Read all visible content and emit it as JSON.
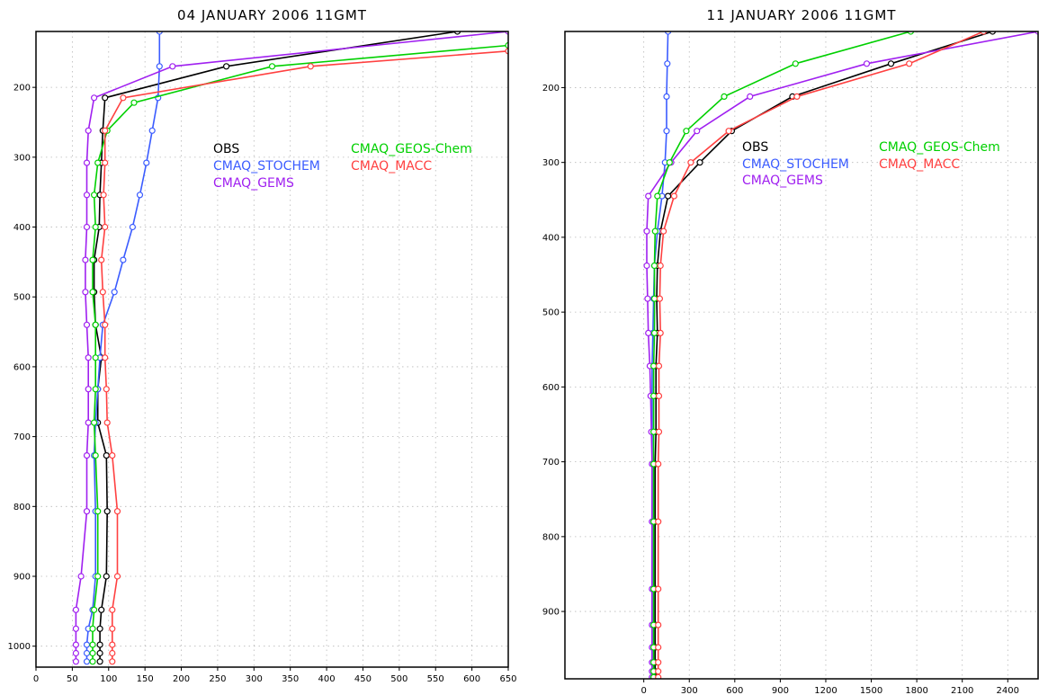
{
  "chart_data": [
    {
      "type": "line",
      "title": "04 JANUARY 2006 11GMT",
      "xlim": [
        0,
        650
      ],
      "ylim": [
        1030,
        120
      ],
      "y_inverted": true,
      "grid": true,
      "x_ticks": [
        0,
        50,
        100,
        150,
        200,
        250,
        300,
        350,
        400,
        450,
        500,
        550,
        600,
        650
      ],
      "y_ticks": [
        200,
        300,
        400,
        500,
        600,
        700,
        800,
        900,
        1000
      ],
      "legend": [
        {
          "name": "OBS",
          "color": "#000000"
        },
        {
          "name": "CMAQ_STOCHEM",
          "color": "#3b5cff"
        },
        {
          "name": "CMAQ_GEMS",
          "color": "#a020f0"
        },
        {
          "name": "CMAQ_GEOS-Chem",
          "color": "#00d000"
        },
        {
          "name": "CMAQ_MACC",
          "color": "#ff4040"
        }
      ],
      "series": [
        {
          "name": "OBS",
          "color": "#000000",
          "points": [
            [
              580,
              120
            ],
            [
              262,
              170
            ],
            [
              95,
              215
            ],
            [
              92,
              262
            ],
            [
              90,
              308
            ],
            [
              88,
              354
            ],
            [
              87,
              400
            ],
            [
              80,
              447
            ],
            [
              80,
              493
            ],
            [
              82,
              540
            ],
            [
              90,
              587
            ],
            [
              85,
              632
            ],
            [
              85,
              680
            ],
            [
              97,
              727
            ],
            [
              98,
              807
            ],
            [
              97,
              900
            ],
            [
              90,
              948
            ],
            [
              88,
              975
            ],
            [
              88,
              998
            ],
            [
              88,
              1010
            ],
            [
              88,
              1022
            ]
          ]
        },
        {
          "name": "CMAQ_STOCHEM",
          "color": "#3b5cff",
          "points": [
            [
              170,
              120
            ],
            [
              170,
              170
            ],
            [
              168,
              215
            ],
            [
              160,
              262
            ],
            [
              152,
              308
            ],
            [
              143,
              354
            ],
            [
              133,
              400
            ],
            [
              120,
              447
            ],
            [
              108,
              493
            ],
            [
              92,
              540
            ],
            [
              88,
              587
            ],
            [
              85,
              632
            ],
            [
              82,
              680
            ],
            [
              80,
              727
            ],
            [
              82,
              807
            ],
            [
              82,
              900
            ],
            [
              78,
              948
            ],
            [
              72,
              975
            ],
            [
              70,
              998
            ],
            [
              70,
              1010
            ],
            [
              70,
              1022
            ]
          ]
        },
        {
          "name": "CMAQ_GEMS",
          "color": "#a020f0",
          "points": [
            [
              650,
              120
            ],
            [
              188,
              170
            ],
            [
              80,
              215
            ],
            [
              72,
              262
            ],
            [
              70,
              308
            ],
            [
              70,
              354
            ],
            [
              70,
              400
            ],
            [
              68,
              447
            ],
            [
              68,
              493
            ],
            [
              70,
              540
            ],
            [
              72,
              587
            ],
            [
              72,
              632
            ],
            [
              72,
              680
            ],
            [
              70,
              727
            ],
            [
              70,
              807
            ],
            [
              62,
              900
            ],
            [
              55,
              948
            ],
            [
              55,
              975
            ],
            [
              55,
              998
            ],
            [
              55,
              1010
            ],
            [
              55,
              1022
            ]
          ]
        },
        {
          "name": "CMAQ_GEOS-Chem",
          "color": "#00d000",
          "points": [
            [
              650,
              140
            ],
            [
              325,
              170
            ],
            [
              135,
              222
            ],
            [
              98,
              262
            ],
            [
              85,
              308
            ],
            [
              80,
              354
            ],
            [
              82,
              400
            ],
            [
              78,
              447
            ],
            [
              78,
              493
            ],
            [
              82,
              540
            ],
            [
              82,
              587
            ],
            [
              82,
              632
            ],
            [
              80,
              680
            ],
            [
              82,
              727
            ],
            [
              85,
              807
            ],
            [
              85,
              900
            ],
            [
              80,
              948
            ],
            [
              78,
              975
            ],
            [
              78,
              998
            ],
            [
              78,
              1010
            ],
            [
              78,
              1022
            ]
          ]
        },
        {
          "name": "CMAQ_MACC",
          "color": "#ff4040",
          "points": [
            [
              650,
              148
            ],
            [
              378,
              170
            ],
            [
              120,
              215
            ],
            [
              95,
              262
            ],
            [
              95,
              308
            ],
            [
              93,
              354
            ],
            [
              95,
              400
            ],
            [
              90,
              447
            ],
            [
              92,
              493
            ],
            [
              95,
              540
            ],
            [
              95,
              587
            ],
            [
              97,
              632
            ],
            [
              98,
              680
            ],
            [
              105,
              727
            ],
            [
              112,
              807
            ],
            [
              112,
              900
            ],
            [
              105,
              948
            ],
            [
              105,
              975
            ],
            [
              105,
              998
            ],
            [
              105,
              1010
            ],
            [
              105,
              1022
            ]
          ]
        }
      ]
    },
    {
      "type": "line",
      "title": "11 JANUARY 2006 11GMT",
      "xlim": [
        -520,
        2600
      ],
      "ylim": [
        990,
        125
      ],
      "y_inverted": true,
      "grid": true,
      "x_ticks": [
        0,
        300,
        600,
        900,
        1200,
        1500,
        1800,
        2100,
        2400
      ],
      "y_ticks": [
        200,
        300,
        400,
        500,
        600,
        700,
        800,
        900
      ],
      "legend": [
        {
          "name": "OBS",
          "color": "#000000"
        },
        {
          "name": "CMAQ_STOCHEM",
          "color": "#3b5cff"
        },
        {
          "name": "CMAQ_GEMS",
          "color": "#a020f0"
        },
        {
          "name": "CMAQ_GEOS-Chem",
          "color": "#00d000"
        },
        {
          "name": "CMAQ_MACC",
          "color": "#ff4040"
        }
      ],
      "series": [
        {
          "name": "OBS",
          "color": "#000000",
          "points": [
            [
              2300,
              125
            ],
            [
              1630,
              168
            ],
            [
              980,
              212
            ],
            [
              580,
              258
            ],
            [
              370,
              300
            ],
            [
              160,
              345
            ],
            [
              110,
              392
            ],
            [
              90,
              438
            ],
            [
              85,
              482
            ],
            [
              90,
              528
            ],
            [
              80,
              572
            ],
            [
              80,
              612
            ],
            [
              80,
              660
            ],
            [
              75,
              703
            ],
            [
              75,
              780
            ],
            [
              75,
              870
            ],
            [
              75,
              918
            ],
            [
              75,
              948
            ],
            [
              75,
              968
            ],
            [
              75,
              980
            ],
            [
              75,
              988
            ]
          ]
        },
        {
          "name": "CMAQ_STOCHEM",
          "color": "#3b5cff",
          "points": [
            [
              160,
              125
            ],
            [
              155,
              168
            ],
            [
              150,
              212
            ],
            [
              150,
              258
            ],
            [
              140,
              300
            ],
            [
              120,
              345
            ],
            [
              90,
              392
            ],
            [
              70,
              438
            ],
            [
              65,
              482
            ],
            [
              60,
              528
            ],
            [
              55,
              572
            ],
            [
              55,
              612
            ],
            [
              55,
              660
            ],
            [
              55,
              703
            ],
            [
              55,
              780
            ],
            [
              55,
              870
            ],
            [
              55,
              918
            ],
            [
              55,
              948
            ],
            [
              55,
              968
            ],
            [
              55,
              980
            ],
            [
              55,
              988
            ]
          ]
        },
        {
          "name": "CMAQ_GEMS",
          "color": "#a020f0",
          "points": [
            [
              2600,
              125
            ],
            [
              1470,
              168
            ],
            [
              700,
              212
            ],
            [
              350,
              258
            ],
            [
              180,
              300
            ],
            [
              30,
              345
            ],
            [
              20,
              392
            ],
            [
              20,
              438
            ],
            [
              25,
              482
            ],
            [
              30,
              528
            ],
            [
              40,
              572
            ],
            [
              45,
              612
            ],
            [
              50,
              660
            ],
            [
              55,
              703
            ],
            [
              55,
              780
            ],
            [
              55,
              870
            ],
            [
              55,
              918
            ],
            [
              55,
              948
            ],
            [
              55,
              968
            ],
            [
              55,
              980
            ],
            [
              55,
              988
            ]
          ]
        },
        {
          "name": "CMAQ_GEOS-Chem",
          "color": "#00d000",
          "points": [
            [
              1760,
              125
            ],
            [
              1000,
              168
            ],
            [
              530,
              212
            ],
            [
              280,
              258
            ],
            [
              170,
              300
            ],
            [
              90,
              345
            ],
            [
              75,
              392
            ],
            [
              70,
              438
            ],
            [
              70,
              482
            ],
            [
              70,
              528
            ],
            [
              65,
              572
            ],
            [
              65,
              612
            ],
            [
              65,
              660
            ],
            [
              65,
              703
            ],
            [
              65,
              780
            ],
            [
              65,
              870
            ],
            [
              65,
              918
            ],
            [
              65,
              948
            ],
            [
              65,
              968
            ],
            [
              65,
              980
            ],
            [
              65,
              988
            ]
          ]
        },
        {
          "name": "CMAQ_MACC",
          "color": "#ff4040",
          "points": [
            [
              2240,
              125
            ],
            [
              1750,
              168
            ],
            [
              1010,
              212
            ],
            [
              560,
              258
            ],
            [
              310,
              300
            ],
            [
              200,
              345
            ],
            [
              130,
              392
            ],
            [
              110,
              438
            ],
            [
              105,
              482
            ],
            [
              110,
              528
            ],
            [
              100,
              572
            ],
            [
              100,
              612
            ],
            [
              100,
              660
            ],
            [
              95,
              703
            ],
            [
              95,
              780
            ],
            [
              95,
              870
            ],
            [
              95,
              918
            ],
            [
              95,
              948
            ],
            [
              95,
              968
            ],
            [
              95,
              980
            ],
            [
              95,
              988
            ]
          ]
        }
      ]
    }
  ]
}
